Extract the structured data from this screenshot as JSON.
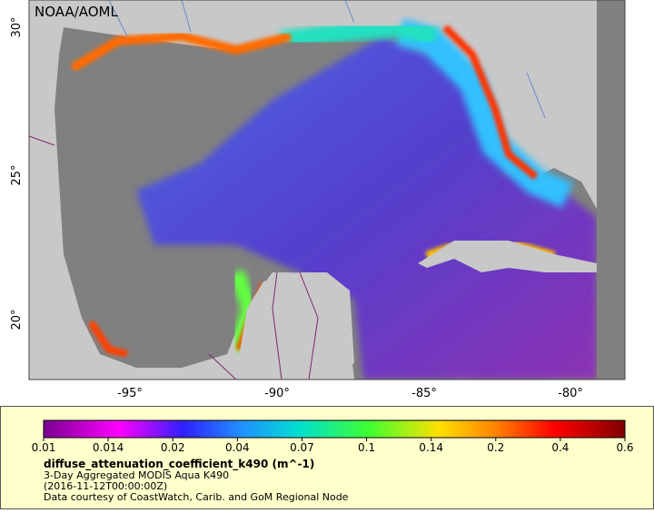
{
  "map": {
    "credit": "NOAA/AOML",
    "lat_labels": [
      "30°",
      "25°",
      "20°"
    ],
    "lon_labels": [
      "-95°",
      "-90°",
      "-85°",
      "-80°"
    ]
  },
  "legend": {
    "ticks": [
      "0.01",
      "0.014",
      "0.02",
      "0.04",
      "0.07",
      "0.1",
      "0.14",
      "0.2",
      "0.4",
      "0.6"
    ],
    "variable": "diffuse_attenuation_coefficient_k490 (m^-1)",
    "description": "3-Day Aggregated MODIS Aqua K490",
    "time": "(2016-11-12T00:00:00Z)",
    "source": "Data courtesy of CoastWatch, Carib. and GoM Regional Node"
  }
}
